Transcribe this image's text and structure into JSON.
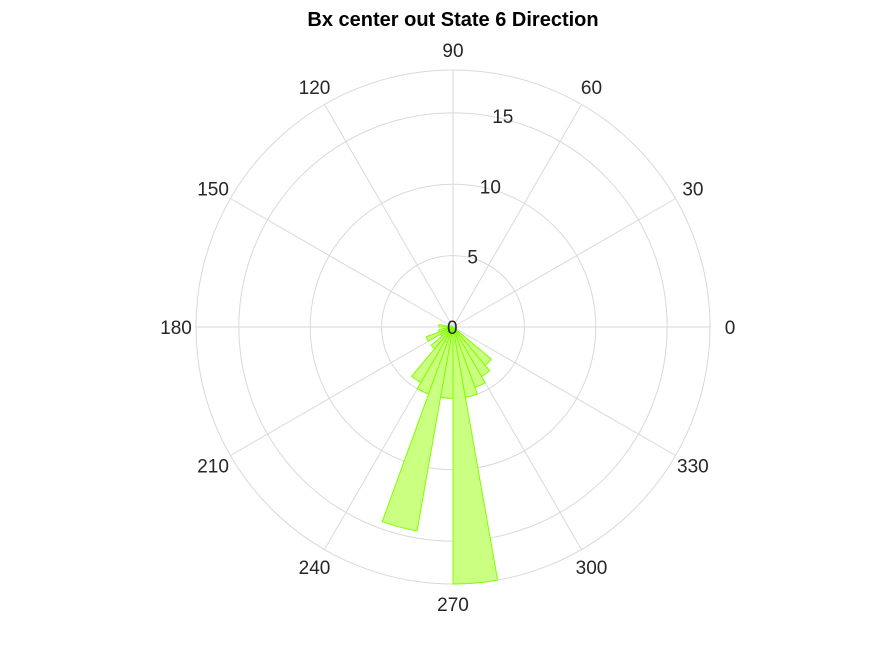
{
  "chart_data": {
    "type": "polar-histogram",
    "title": "Bx  center out State 6 Direction",
    "theta_ticks": [
      0,
      30,
      60,
      90,
      120,
      150,
      180,
      210,
      240,
      270,
      300,
      330
    ],
    "theta_tick_labels": [
      "0",
      "30",
      "60",
      "90",
      "120",
      "150",
      "180",
      "210",
      "240",
      "270",
      "300",
      "330"
    ],
    "r_ticks": [
      0,
      5,
      10,
      15
    ],
    "r_tick_labels": [
      "0",
      "5",
      "10",
      "15"
    ],
    "rlim": [
      0,
      18
    ],
    "bin_width_deg": 10,
    "bins": [
      {
        "start": 170,
        "end": 180,
        "count": 1
      },
      {
        "start": 190,
        "end": 200,
        "count": 1
      },
      {
        "start": 200,
        "end": 210,
        "count": 2
      },
      {
        "start": 210,
        "end": 220,
        "count": 1
      },
      {
        "start": 220,
        "end": 230,
        "count": 2
      },
      {
        "start": 230,
        "end": 240,
        "count": 4.5
      },
      {
        "start": 240,
        "end": 250,
        "count": 5
      },
      {
        "start": 250,
        "end": 260,
        "count": 14.5
      },
      {
        "start": 260,
        "end": 270,
        "count": 5
      },
      {
        "start": 270,
        "end": 280,
        "count": 18
      },
      {
        "start": 280,
        "end": 290,
        "count": 5
      },
      {
        "start": 290,
        "end": 300,
        "count": 4.5
      },
      {
        "start": 300,
        "end": 310,
        "count": 4
      },
      {
        "start": 310,
        "end": 320,
        "count": 3.5
      }
    ],
    "bar_fill": "#c8ff7a",
    "bar_edge": "#80ff00",
    "grid": true
  }
}
